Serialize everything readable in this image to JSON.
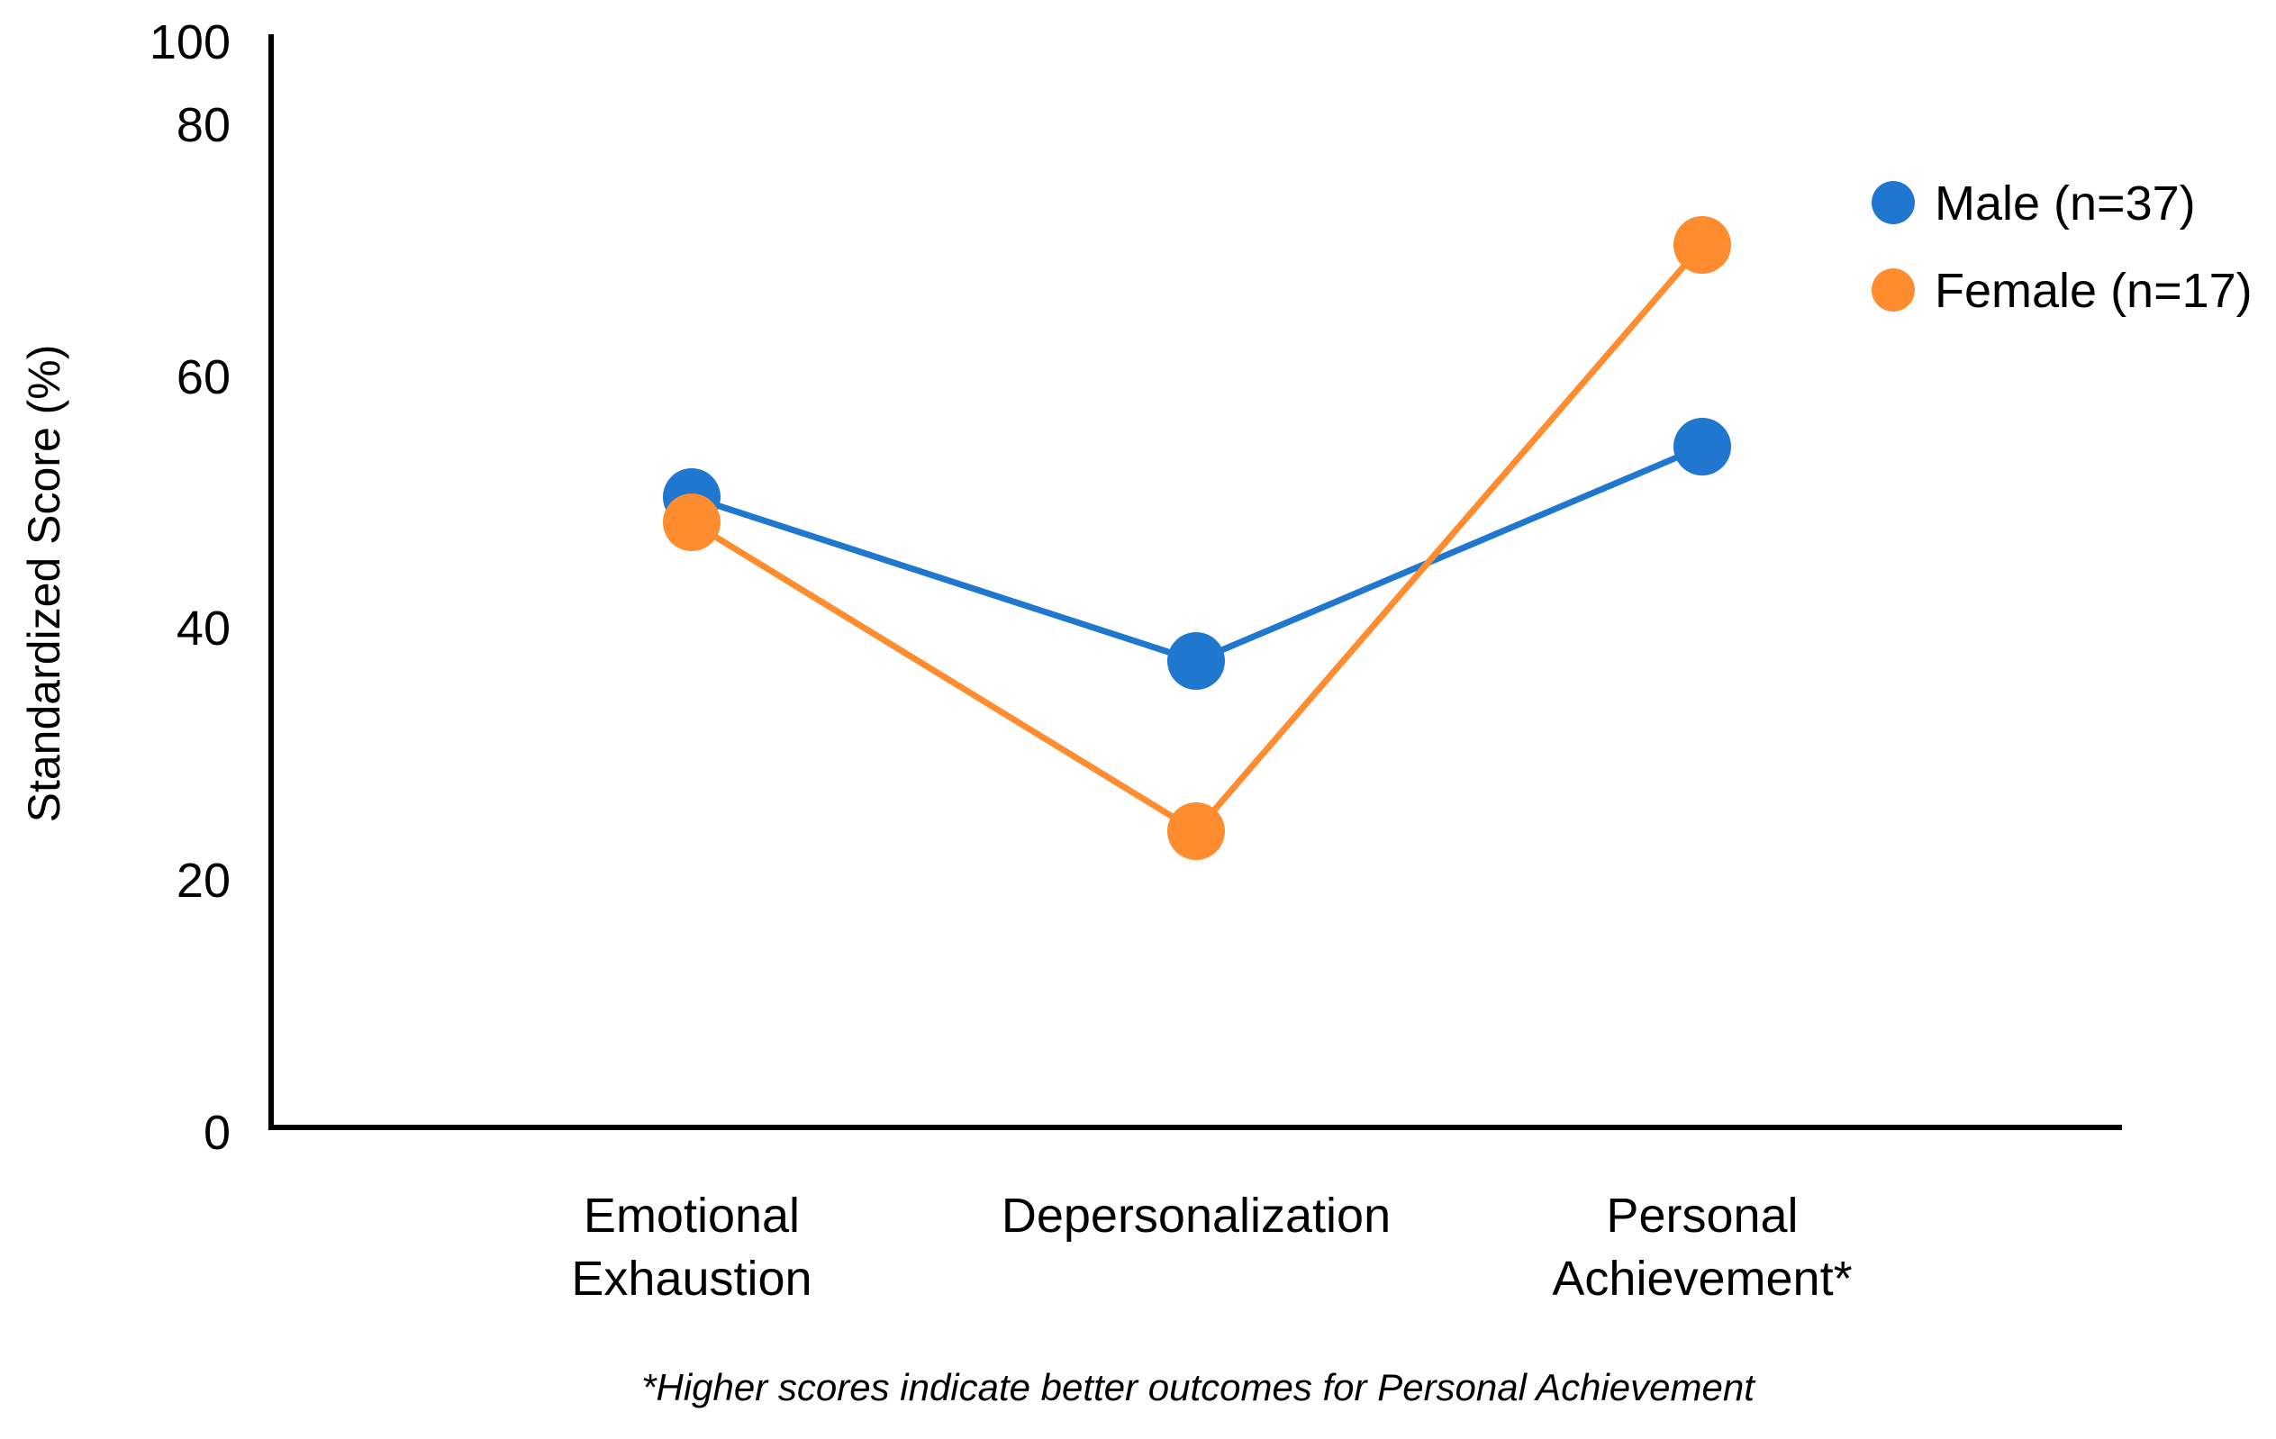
{
  "chart_data": {
    "type": "line",
    "categories": [
      [
        "Emotional",
        "Exhaustion"
      ],
      [
        "Depersonalization"
      ],
      [
        "Personal",
        "Achievement*"
      ]
    ],
    "yticks": [
      "100",
      "80",
      "60",
      "40",
      "20",
      "0"
    ],
    "ylabel": "Standardized Score (%)",
    "xlabel": "",
    "legend": "right",
    "grid": false,
    "series": [
      {
        "name": "Male (n=37)",
        "color": "#1f77d0",
        "values": [
          50,
          37,
          54
        ]
      },
      {
        "name": "Female (n=17)",
        "color": "#ff8c2e",
        "values": [
          48,
          23.5,
          70
        ]
      }
    ],
    "footnote": "*Higher scores indicate better outcomes for Personal Achievement"
  }
}
